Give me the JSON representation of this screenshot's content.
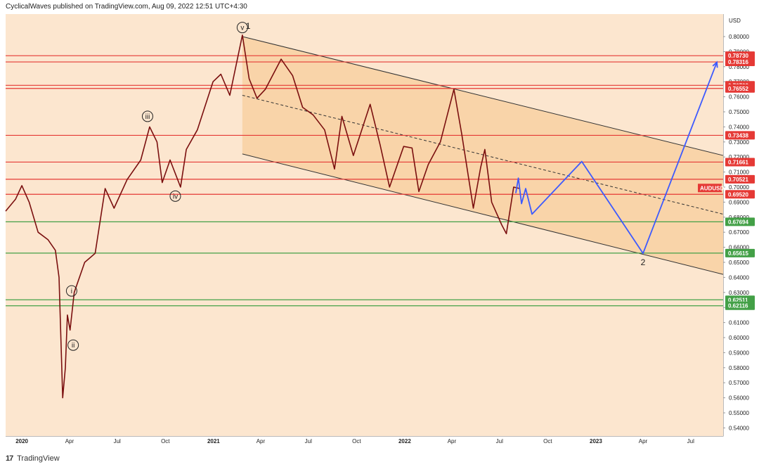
{
  "header": {
    "attribution": "CyclicalWaves published on TradingView.com, Aug 09, 2022 12:51 UTC+4:30"
  },
  "footer": {
    "brand_mark": "17",
    "brand": "TradingView"
  },
  "chart_data": {
    "type": "line",
    "title": "",
    "symbol_label": "AUDUSD",
    "currency_label": "USD",
    "price_scale": "linear",
    "ylim": [
      0.535,
      0.815
    ],
    "y_ticks": [
      0.54,
      0.55,
      0.56,
      0.57,
      0.58,
      0.59,
      0.6,
      0.61,
      0.62,
      0.63,
      0.64,
      0.65,
      0.66,
      0.67,
      0.68,
      0.69,
      0.7,
      0.71,
      0.72,
      0.73,
      0.74,
      0.75,
      0.76,
      0.77,
      0.78,
      0.79,
      0.8
    ],
    "x_range": [
      "2019-12-01",
      "2023-09-01"
    ],
    "x_ticks": [
      {
        "date": "2020-01-01",
        "label": "2020",
        "bold": true
      },
      {
        "date": "2020-04-01",
        "label": "Apr"
      },
      {
        "date": "2020-07-01",
        "label": "Jul"
      },
      {
        "date": "2020-10-01",
        "label": "Oct"
      },
      {
        "date": "2021-01-01",
        "label": "2021",
        "bold": true
      },
      {
        "date": "2021-04-01",
        "label": "Apr"
      },
      {
        "date": "2021-07-01",
        "label": "Jul"
      },
      {
        "date": "2021-10-01",
        "label": "Oct"
      },
      {
        "date": "2022-01-01",
        "label": "2022",
        "bold": true
      },
      {
        "date": "2022-04-01",
        "label": "Apr"
      },
      {
        "date": "2022-07-01",
        "label": "Jul"
      },
      {
        "date": "2022-10-01",
        "label": "Oct"
      },
      {
        "date": "2023-01-01",
        "label": "2023",
        "bold": true
      },
      {
        "date": "2023-04-01",
        "label": "Apr"
      },
      {
        "date": "2023-07-01",
        "label": "Jul"
      }
    ],
    "price_series": {
      "name": "AUDUSD",
      "color": "#7a0f0f",
      "points": [
        [
          "2019-12-01",
          0.684
        ],
        [
          "2019-12-20",
          0.692
        ],
        [
          "2020-01-01",
          0.701
        ],
        [
          "2020-01-15",
          0.69
        ],
        [
          "2020-02-01",
          0.67
        ],
        [
          "2020-02-20",
          0.665
        ],
        [
          "2020-03-05",
          0.658
        ],
        [
          "2020-03-12",
          0.64
        ],
        [
          "2020-03-19",
          0.56
        ],
        [
          "2020-03-24",
          0.58
        ],
        [
          "2020-03-28",
          0.615
        ],
        [
          "2020-04-02",
          0.605
        ],
        [
          "2020-04-10",
          0.63
        ],
        [
          "2020-04-30",
          0.65
        ],
        [
          "2020-05-20",
          0.656
        ],
        [
          "2020-06-08",
          0.699
        ],
        [
          "2020-06-25",
          0.686
        ],
        [
          "2020-07-20",
          0.705
        ],
        [
          "2020-08-15",
          0.718
        ],
        [
          "2020-09-01",
          0.74
        ],
        [
          "2020-09-15",
          0.73
        ],
        [
          "2020-09-25",
          0.703
        ],
        [
          "2020-10-10",
          0.718
        ],
        [
          "2020-10-30",
          0.7
        ],
        [
          "2020-11-10",
          0.725
        ],
        [
          "2020-12-01",
          0.738
        ],
        [
          "2020-12-31",
          0.77
        ],
        [
          "2021-01-15",
          0.775
        ],
        [
          "2021-02-01",
          0.761
        ],
        [
          "2021-02-25",
          0.801
        ],
        [
          "2021-03-10",
          0.772
        ],
        [
          "2021-03-25",
          0.759
        ],
        [
          "2021-04-10",
          0.765
        ],
        [
          "2021-05-10",
          0.785
        ],
        [
          "2021-06-01",
          0.774
        ],
        [
          "2021-06-20",
          0.753
        ],
        [
          "2021-07-10",
          0.748
        ],
        [
          "2021-08-01",
          0.738
        ],
        [
          "2021-08-20",
          0.712
        ],
        [
          "2021-09-03",
          0.747
        ],
        [
          "2021-09-25",
          0.721
        ],
        [
          "2021-10-27",
          0.755
        ],
        [
          "2021-11-15",
          0.728
        ],
        [
          "2021-12-03",
          0.7
        ],
        [
          "2021-12-30",
          0.727
        ],
        [
          "2022-01-15",
          0.726
        ],
        [
          "2022-01-28",
          0.697
        ],
        [
          "2022-02-15",
          0.715
        ],
        [
          "2022-03-10",
          0.73
        ],
        [
          "2022-04-05",
          0.765
        ],
        [
          "2022-04-20",
          0.735
        ],
        [
          "2022-05-12",
          0.686
        ],
        [
          "2022-05-26",
          0.713
        ],
        [
          "2022-06-03",
          0.725
        ],
        [
          "2022-06-16",
          0.69
        ],
        [
          "2022-07-05",
          0.675
        ],
        [
          "2022-07-14",
          0.669
        ],
        [
          "2022-07-28",
          0.7
        ],
        [
          "2022-08-09",
          0.699
        ]
      ]
    },
    "horizontal_levels": [
      {
        "value": 0.7873,
        "label": "0.78730",
        "color": "#e53935"
      },
      {
        "value": 0.78316,
        "label": "0.78316",
        "color": "#e53935"
      },
      {
        "value": 0.76762,
        "label": "0.76762",
        "color": "#e53935"
      },
      {
        "value": 0.76552,
        "label": "0.76552",
        "color": "#e53935"
      },
      {
        "value": 0.73438,
        "label": "0.73438",
        "color": "#e53935"
      },
      {
        "value": 0.71661,
        "label": "0.71661",
        "color": "#e53935"
      },
      {
        "value": 0.70521,
        "label": "0.70521",
        "color": "#e53935"
      },
      {
        "value": 0.6952,
        "label": "0.69520",
        "color": "#e53935"
      },
      {
        "value": 0.67694,
        "label": "0.67694",
        "color": "#43a047"
      },
      {
        "value": 0.65615,
        "label": "0.65615",
        "color": "#43a047"
      },
      {
        "value": 0.62511,
        "label": "0.62511",
        "color": "#43a047"
      },
      {
        "value": 0.62116,
        "label": "0.62116",
        "color": "#43a047"
      }
    ],
    "current_price_tag": {
      "value": 0.6994,
      "label": "AUDUSD",
      "color": "#e53935"
    },
    "channel": {
      "upper": [
        [
          "2021-02-25",
          0.8
        ],
        [
          "2023-09-01",
          0.721
        ]
      ],
      "lower": [
        [
          "2021-02-25",
          0.722
        ],
        [
          "2023-09-01",
          0.642
        ]
      ],
      "midline": [
        [
          "2021-02-25",
          0.761
        ],
        [
          "2023-09-01",
          0.682
        ]
      ],
      "fill_color": "#f6c48a",
      "line_color": "#333333"
    },
    "projection": {
      "color": "#3d5afe",
      "points": [
        [
          "2022-08-01",
          0.696
        ],
        [
          "2022-08-06",
          0.706
        ],
        [
          "2022-08-12",
          0.689
        ],
        [
          "2022-08-20",
          0.699
        ],
        [
          "2022-09-01",
          0.682
        ],
        [
          "2022-12-05",
          0.717
        ],
        [
          "2023-04-01",
          0.656
        ],
        [
          "2023-08-20",
          0.783
        ]
      ]
    },
    "wave_labels": [
      {
        "label": "v",
        "date": "2021-02-25",
        "value": 0.806,
        "circled": true
      },
      {
        "label": "1",
        "date": "2021-03-08",
        "value": 0.807,
        "circled": false
      },
      {
        "label": "iii",
        "date": "2020-08-28",
        "value": 0.747,
        "circled": true
      },
      {
        "label": "iv",
        "date": "2020-10-20",
        "value": 0.694,
        "circled": true
      },
      {
        "label": "i",
        "date": "2020-04-05",
        "value": 0.631,
        "circled": true
      },
      {
        "label": "ii",
        "date": "2020-04-08",
        "value": 0.595,
        "circled": true
      },
      {
        "label": "2",
        "date": "2023-04-01",
        "value": 0.65,
        "circled": false
      }
    ],
    "grid": false,
    "legend": "none",
    "background_color": "#fce6cf"
  }
}
